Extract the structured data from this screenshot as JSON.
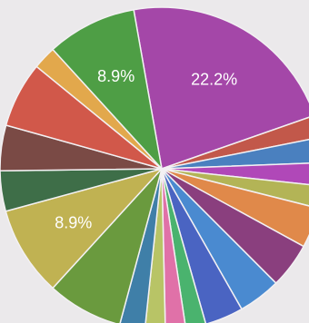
{
  "chart_data": {
    "type": "pie",
    "start_angle_deg": -10,
    "clockwise": true,
    "slices": [
      {
        "value": 22.2,
        "label": "22.2%",
        "color": "#a447a8"
      },
      {
        "value": 2.2,
        "label": "",
        "color": "#c2584a"
      },
      {
        "value": 2.5,
        "label": "",
        "color": "#4a80bf"
      },
      {
        "value": 2.3,
        "label": "",
        "color": "#b048b8"
      },
      {
        "value": 2.2,
        "label": "",
        "color": "#b3b456"
      },
      {
        "value": 4.0,
        "label": "",
        "color": "#e0894a"
      },
      {
        "value": 4.5,
        "label": "",
        "color": "#8a3f7e"
      },
      {
        "value": 4.2,
        "label": "",
        "color": "#4a8ad0"
      },
      {
        "value": 3.8,
        "label": "",
        "color": "#4a64c2"
      },
      {
        "value": 2.0,
        "label": "",
        "color": "#4ab36e"
      },
      {
        "value": 2.0,
        "label": "",
        "color": "#e071a8"
      },
      {
        "value": 2.0,
        "label": "",
        "color": "#b8c466"
      },
      {
        "value": 2.5,
        "label": "",
        "color": "#3f7fa8"
      },
      {
        "value": 7.5,
        "label": "",
        "color": "#6a9a3e"
      },
      {
        "value": 8.9,
        "label": "8.9%",
        "color": "#c0b252"
      },
      {
        "value": 4.0,
        "label": "",
        "color": "#3e6e48"
      },
      {
        "value": 4.5,
        "label": "",
        "color": "#7a4a45"
      },
      {
        "value": 6.5,
        "label": "",
        "color": "#d1584a"
      },
      {
        "value": 2.3,
        "label": "",
        "color": "#e2a84c"
      },
      {
        "value": 8.9,
        "label": "8.9%",
        "color": "#4e9e45"
      }
    ]
  }
}
